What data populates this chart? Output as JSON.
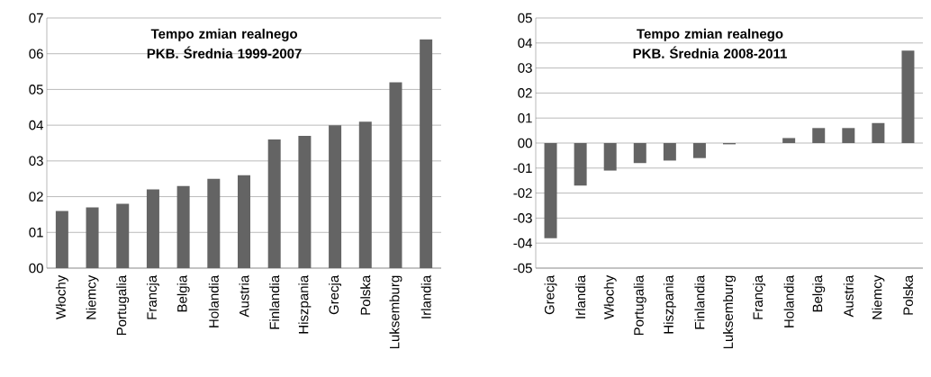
{
  "chart_data": [
    {
      "type": "bar",
      "title": "Tempo zmian realnego PKB. Średnia 1999-2007",
      "categories": [
        "Włochy",
        "Niemcy",
        "Portugalia",
        "Francja",
        "Belgia",
        "Holandia",
        "Austria",
        "Finlandia",
        "Hiszpania",
        "Grecja",
        "Polska",
        "Luksemburg",
        "Irlandia"
      ],
      "values": [
        1.6,
        1.7,
        1.8,
        2.2,
        2.3,
        2.5,
        2.6,
        3.6,
        3.7,
        4.0,
        4.1,
        5.2,
        6.4
      ],
      "color": "#646464",
      "ylim": [
        0,
        7
      ],
      "yticks": [
        {
          "value": 0,
          "label": "00"
        },
        {
          "value": 1,
          "label": "01"
        },
        {
          "value": 2,
          "label": "02"
        },
        {
          "value": 3,
          "label": "03"
        },
        {
          "value": 4,
          "label": "04"
        },
        {
          "value": 5,
          "label": "05"
        },
        {
          "value": 6,
          "label": "06"
        },
        {
          "value": 7,
          "label": "07"
        }
      ],
      "grid": "y"
    },
    {
      "type": "bar",
      "title": "Tempo zmian realnego PKB. Średnia 2008-2011",
      "categories": [
        "Grecja",
        "Irlandia",
        "Włochy",
        "Portugalia",
        "Hiszpania",
        "Finlandia",
        "Luksemburg",
        "Francja",
        "Holandia",
        "Belgia",
        "Austria",
        "Niemcy",
        "Polska"
      ],
      "values": [
        -3.8,
        -1.7,
        -1.1,
        -0.8,
        -0.7,
        -0.6,
        -0.05,
        0,
        0.2,
        0.6,
        0.6,
        0.8,
        3.7
      ],
      "color": "#646464",
      "ylim": [
        -5,
        5
      ],
      "yticks": [
        {
          "value": -5,
          "label": "-05"
        },
        {
          "value": -4,
          "label": "-04"
        },
        {
          "value": -3,
          "label": "-03"
        },
        {
          "value": -2,
          "label": "-02"
        },
        {
          "value": -1,
          "label": "-01"
        },
        {
          "value": 0,
          "label": "00"
        },
        {
          "value": 1,
          "label": "01"
        },
        {
          "value": 2,
          "label": "02"
        },
        {
          "value": 3,
          "label": "03"
        },
        {
          "value": 4,
          "label": "04"
        },
        {
          "value": 5,
          "label": "05"
        }
      ],
      "grid": "y"
    }
  ]
}
